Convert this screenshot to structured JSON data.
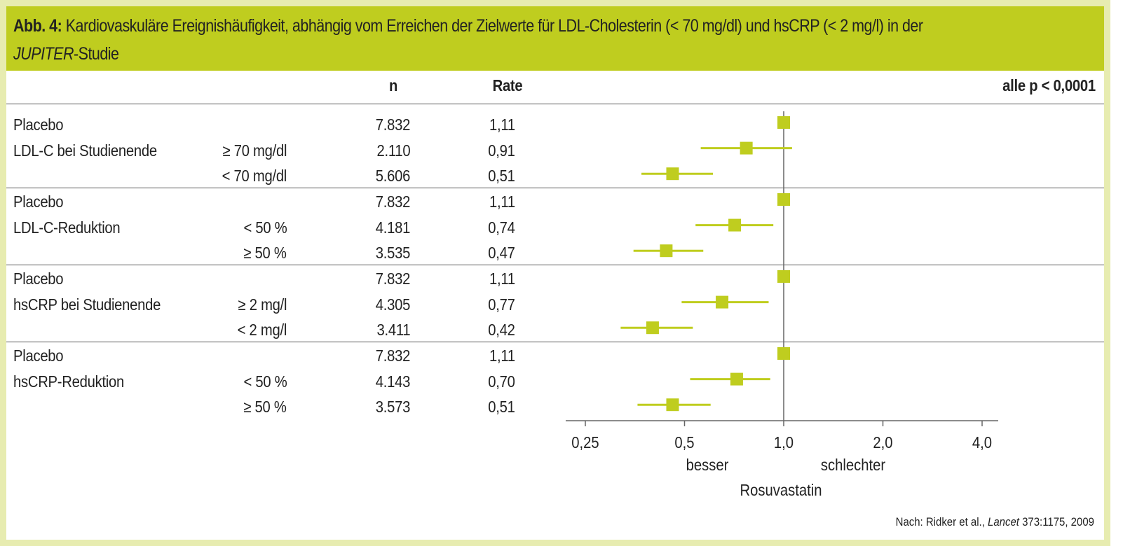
{
  "title": {
    "label": "Abb. 4:",
    "text": " Kardiovaskuläre Ereignishäufigkeit, abhängig vom Erreichen der Zielwerte für LDL-Cholesterin (< 70 mg/dl) und hsCRP (< 2 mg/l) in der",
    "study": "JUPITER",
    "study_suffix": "-Studie"
  },
  "table": {
    "col_n": "n",
    "col_rate": "Rate",
    "p_note": "alle p < 0,0001"
  },
  "colors": {
    "header": "#bfcd1f",
    "frame": "#e7ecb0",
    "marker": "#bfcd1f",
    "axis": "#666666"
  },
  "chart_data": {
    "type": "forest",
    "xscale": "log2",
    "xlim": [
      0.25,
      4.0
    ],
    "xticks": [
      "0,25",
      "0,5",
      "1,0",
      "2,0",
      "4,0"
    ],
    "xtick_values": [
      0.25,
      0.5,
      1.0,
      2.0,
      4.0
    ],
    "reference_line": 1.0,
    "label_left": "besser",
    "label_right": "schlechter",
    "xlabel": "Rosuvastatin",
    "groups": [
      {
        "rows": [
          {
            "label": "Placebo",
            "sublabel": "",
            "n": "7.832",
            "rate": "1,11",
            "hr": 1.0,
            "ci": null
          },
          {
            "label": "LDL-C bei Studienende",
            "sublabel": "≥ 70 mg/dl",
            "n": "2.110",
            "rate": "0,91",
            "hr": 0.77,
            "ci": [
              0.56,
              1.06
            ]
          },
          {
            "label": "",
            "sublabel": "< 70 mg/dl",
            "n": "5.606",
            "rate": "0,51",
            "hr": 0.46,
            "ci": [
              0.37,
              0.61
            ]
          }
        ]
      },
      {
        "rows": [
          {
            "label": "Placebo",
            "sublabel": "",
            "n": "7.832",
            "rate": "1,11",
            "hr": 1.0,
            "ci": null
          },
          {
            "label": "LDL-C-Reduktion",
            "sublabel": "< 50 %",
            "n": "4.181",
            "rate": "0,74",
            "hr": 0.71,
            "ci": [
              0.54,
              0.93
            ]
          },
          {
            "label": "",
            "sublabel": "≥ 50 %",
            "n": "3.535",
            "rate": "0,47",
            "hr": 0.44,
            "ci": [
              0.35,
              0.57
            ]
          }
        ]
      },
      {
        "rows": [
          {
            "label": "Placebo",
            "sublabel": "",
            "n": "7.832",
            "rate": "1,11",
            "hr": 1.0,
            "ci": null
          },
          {
            "label": "hsCRP bei Studienende",
            "sublabel": "≥ 2 mg/l",
            "n": "4.305",
            "rate": "0,77",
            "hr": 0.65,
            "ci": [
              0.49,
              0.9
            ]
          },
          {
            "label": "",
            "sublabel": "< 2 mg/l",
            "n": "3.411",
            "rate": "0,42",
            "hr": 0.4,
            "ci": [
              0.32,
              0.53
            ]
          }
        ]
      },
      {
        "rows": [
          {
            "label": "Placebo",
            "sublabel": "",
            "n": "7.832",
            "rate": "1,11",
            "hr": 1.0,
            "ci": null
          },
          {
            "label": "hsCRP-Reduktion",
            "sublabel": "< 50 %",
            "n": "4.143",
            "rate": "0,70",
            "hr": 0.72,
            "ci": [
              0.52,
              0.91
            ]
          },
          {
            "label": "",
            "sublabel": "≥ 50 %",
            "n": "3.573",
            "rate": "0,51",
            "hr": 0.46,
            "ci": [
              0.36,
              0.6
            ]
          }
        ]
      }
    ]
  },
  "source": {
    "prefix": "Nach: Ridker et al., ",
    "journal": "Lancet",
    "suffix": " 373:1175, 2009"
  }
}
